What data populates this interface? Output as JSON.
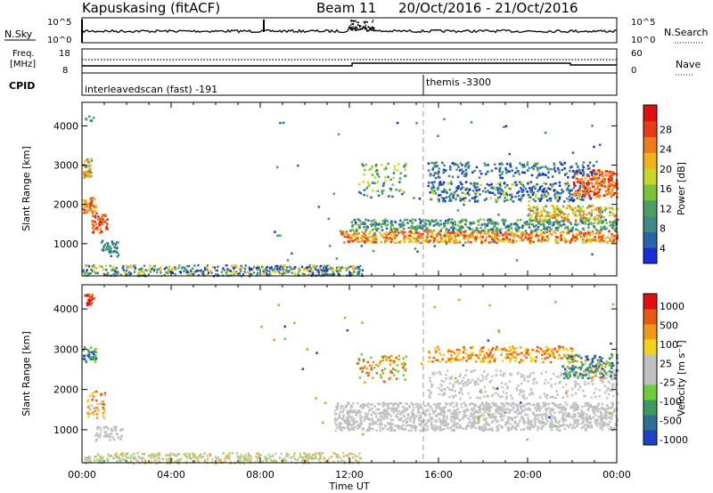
{
  "header": {
    "station": "Kapuskasing (fitACF)",
    "beam": "Beam 11",
    "dates": "20/Oct/2016 - 21/Oct/2016"
  },
  "noise_panel": {
    "left_label": "N.Sky",
    "right_label": "N.Search",
    "left_ticks": [
      "10^5",
      "10^0"
    ],
    "right_ticks": [
      "10^5",
      "10^0"
    ]
  },
  "freq_panel": {
    "left_label_1": "Freq.",
    "left_label_2": "[MHz]",
    "right_label": "Nave",
    "left_ticks": [
      "18",
      "8"
    ],
    "right_ticks": [
      "60",
      "0"
    ]
  },
  "cpid_panel": {
    "label": "CPID",
    "segments": [
      {
        "start_hour": 0.0,
        "text": "interleavedscan (fast) -191"
      },
      {
        "start_hour": 15.5,
        "text": "themis -3300"
      }
    ]
  },
  "time_axis": {
    "label": "Time UT",
    "ticks": [
      "00:00",
      "04:00",
      "08:00",
      "12:00",
      "16:00",
      "20:00",
      "00:00"
    ]
  },
  "chart_data": [
    {
      "type": "heatmap",
      "name": "power",
      "ylabel": "Slant Range [km]",
      "xlim_hours": [
        0,
        24
      ],
      "ylim": [
        180,
        4600
      ],
      "yticks": [
        "1000",
        "2000",
        "3000",
        "4000"
      ],
      "colorbar": {
        "label": "Power [dB]",
        "ticks": [
          "4",
          "8",
          "12",
          "16",
          "20",
          "24",
          "28"
        ],
        "colors": [
          "#1a2bd8",
          "#2a64a8",
          "#3f8a86",
          "#4aa060",
          "#79c23a",
          "#c9d629",
          "#f2b21e",
          "#f07a1a",
          "#e83a16",
          "#e01010"
        ]
      },
      "features": [
        {
          "t": [
            0.0,
            1.6
          ],
          "range": [
            700,
            3300
          ],
          "desc": "near-range decaying echoes"
        },
        {
          "t": [
            0.0,
            12.5
          ],
          "range": [
            180,
            480
          ],
          "desc": "ground scatter band"
        },
        {
          "t": [
            11.3,
            24.0
          ],
          "range": [
            1000,
            1750
          ],
          "desc": "main ionospheric band"
        },
        {
          "t": [
            12.0,
            24.0
          ],
          "range": [
            2000,
            3100
          ],
          "desc": "upper bands"
        }
      ]
    },
    {
      "type": "heatmap",
      "name": "velocity",
      "ylabel": "Slant Range [km]",
      "xlim_hours": [
        0,
        24
      ],
      "ylim": [
        180,
        4600
      ],
      "yticks": [
        "1000",
        "2000",
        "3000",
        "4000"
      ],
      "colorbar": {
        "label": "Velocity [m s⁻¹]",
        "ticks": [
          "1000",
          "500",
          "100",
          "25",
          "-25",
          "-100",
          "-500",
          "-1000"
        ],
        "colors": [
          "#2040c8",
          "#2f7090",
          "#3e9860",
          "#6ccd3c",
          "#c0c0c0",
          "#c0c0c0",
          "#f2d21a",
          "#f09818",
          "#e85a14",
          "#e01010"
        ]
      },
      "features": [
        {
          "t": [
            11.3,
            24.0
          ],
          "range": [
            1000,
            2600
          ],
          "desc": "ground scatter (grey)"
        },
        {
          "t": [
            15.5,
            24.0
          ],
          "range": [
            2000,
            3000
          ],
          "desc": "negative velocity patches"
        }
      ]
    }
  ]
}
